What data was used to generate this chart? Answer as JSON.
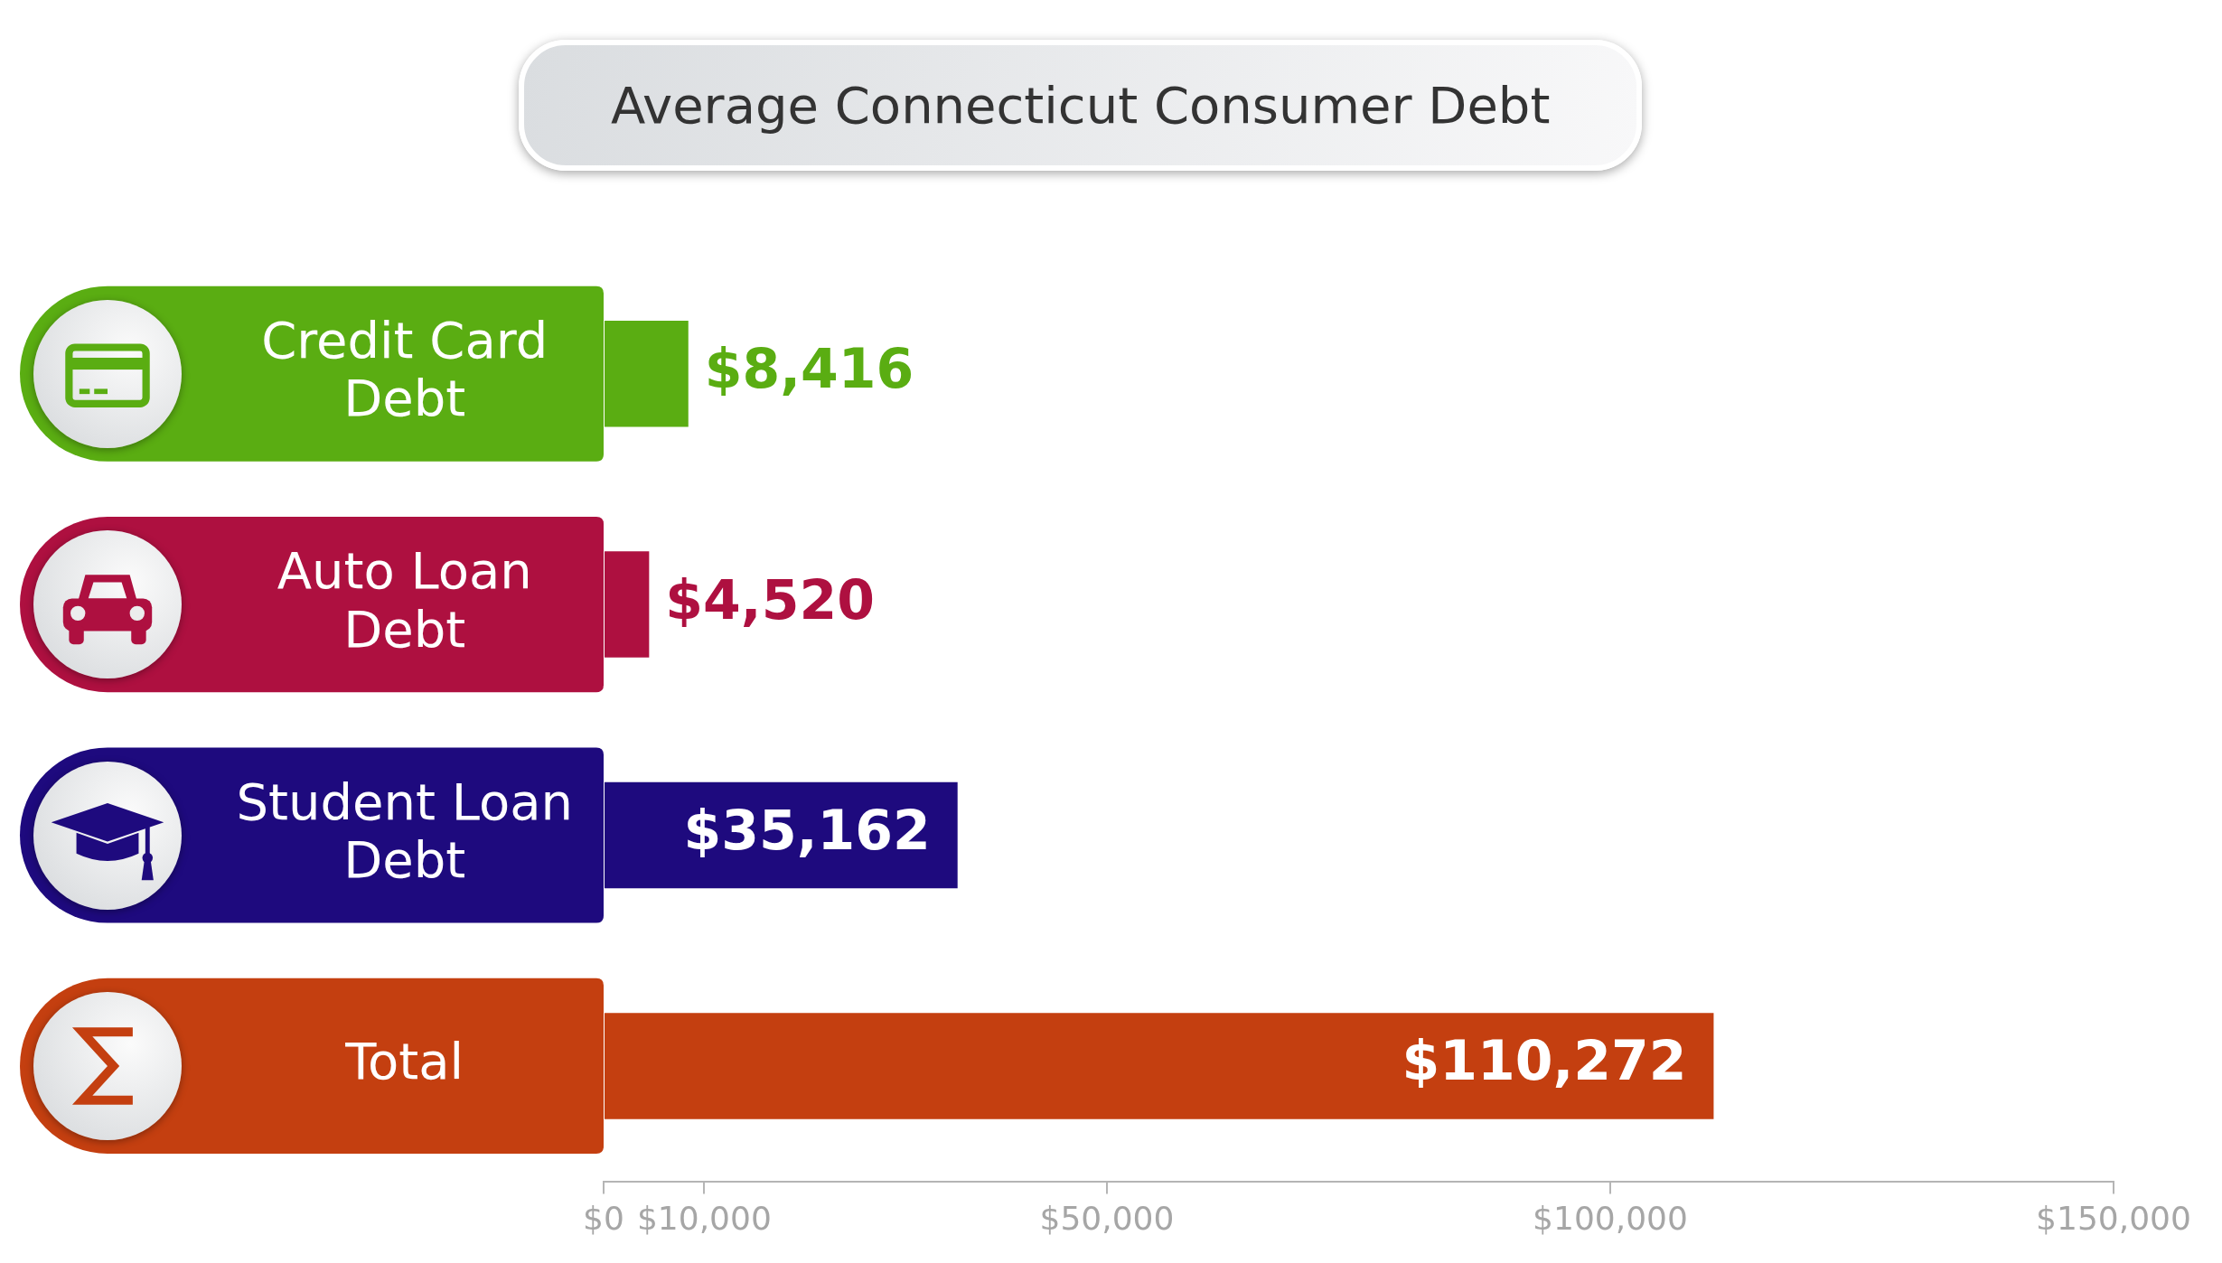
{
  "chart_data": {
    "type": "bar",
    "orientation": "horizontal",
    "title": "Average Connecticut Consumer Debt",
    "categories": [
      "Credit Card Debt",
      "Auto Loan Debt",
      "Student Loan Debt",
      "Total"
    ],
    "values": [
      8416,
      4520,
      35162,
      110272
    ],
    "colors": [
      "#5aad12",
      "#ae1040",
      "#1e0a7e",
      "#c43f10"
    ],
    "value_labels": [
      "$8,416",
      "$4,520",
      "$35,162",
      "$110,272"
    ],
    "xlim": [
      0,
      150000
    ],
    "xticks": [
      {
        "value": 0,
        "label": "$0"
      },
      {
        "value": 10000,
        "label": "$10,000"
      },
      {
        "value": 50000,
        "label": "$50,000"
      },
      {
        "value": 100000,
        "label": "$100,000"
      },
      {
        "value": 150000,
        "label": "$150,000"
      }
    ],
    "grid": false,
    "legend": false
  }
}
